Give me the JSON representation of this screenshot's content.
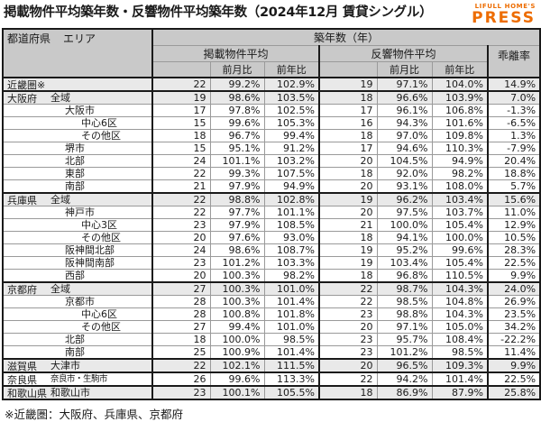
{
  "page": {
    "footnote": "※近畿圏：大阪府、兵庫県、京都府"
  },
  "logo": {
    "top": "LIFULL HOME'S",
    "main": "PRESS"
  },
  "colors": {
    "accent_orange": "#ed6c00",
    "header_bg": "#c9c9c9",
    "highlight_row_bg": "#e9e9e9"
  },
  "table_header": {
    "region_pref": "都道府県",
    "region_area": "エリア",
    "age_group": "築年数（年）",
    "listed_group": "掲載物件平均",
    "response_group": "反響物件平均",
    "divergence": "乖離率",
    "mom": "前月比",
    "yoy": "前年比"
  },
  "chart_data": {
    "type": "table",
    "title": "掲載物件平均築年数・反響物件平均築年数（2024年12月 賃貸シングル）",
    "columns": [
      "都道府県 エリア",
      "掲載物件平均",
      "掲載前月比",
      "掲載前年比",
      "反響物件平均",
      "反響前月比",
      "反響前年比",
      "乖離率"
    ],
    "rows": [
      {
        "pref": "近畿圏※",
        "area": "",
        "indent": 1,
        "highlight": true,
        "section": true,
        "cells": [
          "22",
          "99.2%",
          "102.9%",
          "19",
          "97.1%",
          "104.0%",
          "14.9%"
        ]
      },
      {
        "pref": "大阪府",
        "area": "全域",
        "indent": 1,
        "highlight": true,
        "section": true,
        "cells": [
          "19",
          "98.6%",
          "103.5%",
          "18",
          "96.6%",
          "103.9%",
          "7.0%"
        ]
      },
      {
        "pref": "",
        "area": "大阪市",
        "indent": 2,
        "highlight": false,
        "section": false,
        "cells": [
          "17",
          "97.8%",
          "102.5%",
          "17",
          "96.1%",
          "106.8%",
          "-1.3%"
        ]
      },
      {
        "pref": "",
        "area": "中心6区",
        "indent": 3,
        "highlight": false,
        "section": false,
        "cells": [
          "15",
          "99.6%",
          "105.3%",
          "16",
          "94.3%",
          "101.6%",
          "-6.5%"
        ]
      },
      {
        "pref": "",
        "area": "その他区",
        "indent": 3,
        "highlight": false,
        "section": false,
        "cells": [
          "18",
          "96.7%",
          "99.4%",
          "18",
          "97.0%",
          "109.8%",
          "1.3%"
        ]
      },
      {
        "pref": "",
        "area": "堺市",
        "indent": 2,
        "highlight": false,
        "section": false,
        "cells": [
          "15",
          "95.1%",
          "91.2%",
          "17",
          "94.6%",
          "110.3%",
          "-7.9%"
        ]
      },
      {
        "pref": "",
        "area": "北部",
        "indent": 2,
        "highlight": false,
        "section": false,
        "cells": [
          "24",
          "101.1%",
          "103.2%",
          "20",
          "104.5%",
          "94.9%",
          "20.4%"
        ]
      },
      {
        "pref": "",
        "area": "東部",
        "indent": 2,
        "highlight": false,
        "section": false,
        "cells": [
          "22",
          "99.3%",
          "107.5%",
          "18",
          "92.0%",
          "98.2%",
          "18.8%"
        ]
      },
      {
        "pref": "",
        "area": "南部",
        "indent": 2,
        "highlight": false,
        "section": false,
        "cells": [
          "21",
          "97.9%",
          "94.9%",
          "20",
          "93.1%",
          "108.0%",
          "5.7%"
        ]
      },
      {
        "pref": "兵庫県",
        "area": "全域",
        "indent": 1,
        "highlight": true,
        "section": true,
        "cells": [
          "22",
          "98.8%",
          "102.8%",
          "19",
          "96.2%",
          "103.4%",
          "15.6%"
        ]
      },
      {
        "pref": "",
        "area": "神戸市",
        "indent": 2,
        "highlight": false,
        "section": false,
        "cells": [
          "22",
          "97.7%",
          "101.1%",
          "20",
          "97.5%",
          "103.7%",
          "11.0%"
        ]
      },
      {
        "pref": "",
        "area": "中心3区",
        "indent": 3,
        "highlight": false,
        "section": false,
        "cells": [
          "23",
          "97.9%",
          "108.5%",
          "21",
          "100.0%",
          "105.4%",
          "12.9%"
        ]
      },
      {
        "pref": "",
        "area": "その他区",
        "indent": 3,
        "highlight": false,
        "section": false,
        "cells": [
          "20",
          "97.6%",
          "93.0%",
          "18",
          "94.1%",
          "100.0%",
          "10.5%"
        ]
      },
      {
        "pref": "",
        "area": "阪神間北部",
        "indent": 2,
        "highlight": false,
        "section": false,
        "cells": [
          "24",
          "98.6%",
          "108.7%",
          "19",
          "95.2%",
          "99.6%",
          "28.3%"
        ]
      },
      {
        "pref": "",
        "area": "阪神間南部",
        "indent": 2,
        "highlight": false,
        "section": false,
        "cells": [
          "23",
          "101.2%",
          "103.3%",
          "19",
          "103.4%",
          "105.4%",
          "22.5%"
        ]
      },
      {
        "pref": "",
        "area": "西部",
        "indent": 2,
        "highlight": false,
        "section": false,
        "cells": [
          "20",
          "100.3%",
          "98.2%",
          "18",
          "96.8%",
          "110.5%",
          "9.9%"
        ]
      },
      {
        "pref": "京都府",
        "area": "全域",
        "indent": 1,
        "highlight": true,
        "section": true,
        "cells": [
          "27",
          "100.3%",
          "101.0%",
          "22",
          "98.7%",
          "104.3%",
          "24.0%"
        ]
      },
      {
        "pref": "",
        "area": "京都市",
        "indent": 2,
        "highlight": false,
        "section": false,
        "cells": [
          "28",
          "100.3%",
          "101.4%",
          "22",
          "98.5%",
          "104.8%",
          "26.9%"
        ]
      },
      {
        "pref": "",
        "area": "中心6区",
        "indent": 3,
        "highlight": false,
        "section": false,
        "cells": [
          "28",
          "100.8%",
          "101.8%",
          "23",
          "98.8%",
          "104.3%",
          "23.5%"
        ]
      },
      {
        "pref": "",
        "area": "その他区",
        "indent": 3,
        "highlight": false,
        "section": false,
        "cells": [
          "27",
          "99.4%",
          "101.0%",
          "20",
          "97.1%",
          "105.0%",
          "34.2%"
        ]
      },
      {
        "pref": "",
        "area": "北部",
        "indent": 2,
        "highlight": false,
        "section": false,
        "cells": [
          "18",
          "100.0%",
          "98.5%",
          "23",
          "95.7%",
          "108.4%",
          "-22.2%"
        ]
      },
      {
        "pref": "",
        "area": "南部",
        "indent": 2,
        "highlight": false,
        "section": false,
        "cells": [
          "25",
          "100.9%",
          "101.4%",
          "23",
          "101.2%",
          "98.5%",
          "11.4%"
        ]
      },
      {
        "pref": "滋賀県",
        "area": "大津市",
        "indent": 1,
        "highlight": true,
        "section": true,
        "cells": [
          "22",
          "102.1%",
          "111.5%",
          "20",
          "96.5%",
          "109.3%",
          "9.9%"
        ]
      },
      {
        "pref": "奈良県",
        "area": "奈良市・生駒市",
        "indent": 1,
        "small": true,
        "highlight": false,
        "section": true,
        "cells": [
          "26",
          "99.6%",
          "113.3%",
          "22",
          "94.2%",
          "101.4%",
          "22.5%"
        ]
      },
      {
        "pref": "和歌山県",
        "area": "和歌山市",
        "indent": 1,
        "highlight": true,
        "section": true,
        "cells": [
          "23",
          "100.1%",
          "105.5%",
          "18",
          "86.9%",
          "87.9%",
          "25.8%"
        ]
      }
    ]
  }
}
